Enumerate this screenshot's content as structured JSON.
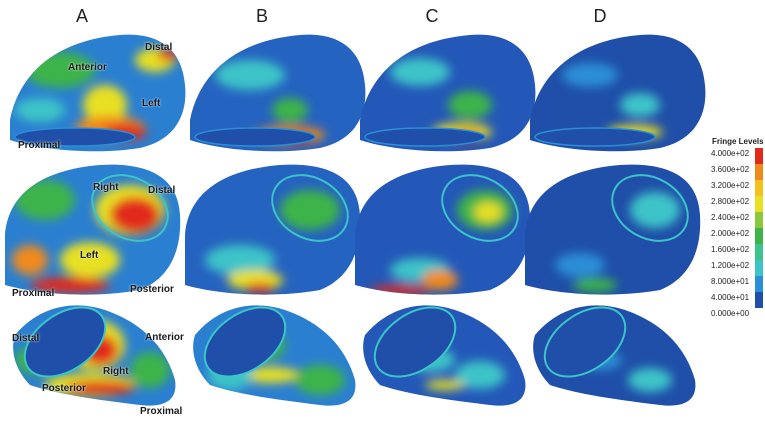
{
  "columns": [
    "A",
    "B",
    "C",
    "D"
  ],
  "annotations": {
    "row1": [
      "Distal",
      "Anterior",
      "Left",
      "Proximal"
    ],
    "row2": [
      "Right",
      "Distal",
      "Left",
      "Proximal",
      "Posterior"
    ],
    "row3": [
      "Distal",
      "Anterior",
      "Right",
      "Posterior",
      "Proximal"
    ]
  },
  "legend": {
    "title": "Fringe Levels",
    "ticks": [
      "4.000e+02",
      "3.600e+02",
      "3.200e+02",
      "2.800e+02",
      "2.400e+02",
      "2.000e+02",
      "1.600e+02",
      "1.200e+02",
      "8.000e+01",
      "4.000e+01",
      "0.000e+00"
    ]
  },
  "colors": {
    "min": "#1f4fa8",
    "low": "#2a8fd6",
    "mid_low": "#3cc4c8",
    "mid": "#3cb44a",
    "mid_high": "#e8e020",
    "high": "#f08a1c",
    "max": "#e22a1c"
  }
}
